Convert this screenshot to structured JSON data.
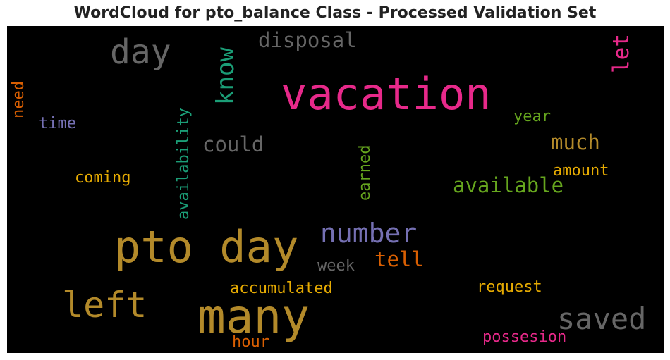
{
  "title": "WordCloud for pto_balance Class - Processed Validation Set",
  "colors": {
    "background": "#000000",
    "pink": "#e7298a",
    "gold": "#b38a2a",
    "gray": "#666666",
    "teal": "#1b9e77",
    "purple": "#7570b3",
    "orange": "#d95f02",
    "green": "#66a61e",
    "yellow": "#e6ab02"
  },
  "words": {
    "vacation": "vacation",
    "pto_day": "pto day",
    "many": "many",
    "left": "left",
    "day": "day",
    "know": "know",
    "number": "number",
    "saved": "saved",
    "disposal": "disposal",
    "let": "let",
    "need": "need",
    "time": "time",
    "availability": "availability",
    "could": "could",
    "year": "year",
    "much": "much",
    "earned": "earned",
    "amount": "amount",
    "coming": "coming",
    "available": "available",
    "tell": "tell",
    "week": "week",
    "accumulated": "accumulated",
    "request": "request",
    "hour": "hour",
    "possesion": "possesion"
  }
}
